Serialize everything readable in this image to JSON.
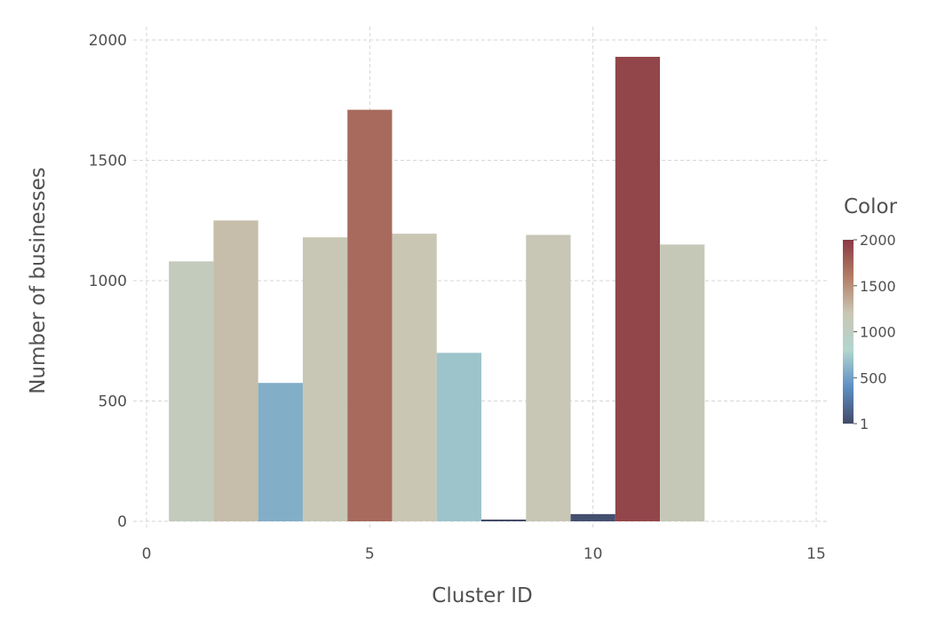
{
  "chart_data": {
    "type": "bar",
    "title": "",
    "xlabel": "Cluster ID",
    "ylabel": "Number of businesses",
    "xlim": [
      0,
      15
    ],
    "ylim": [
      0,
      2000
    ],
    "x_ticks": [
      0,
      5,
      10,
      15
    ],
    "y_ticks": [
      0,
      500,
      1000,
      1500,
      2000
    ],
    "grid": true,
    "bar_width": 1,
    "series": [
      {
        "x": [
          1,
          2,
          3,
          4,
          5,
          6,
          7,
          8,
          9,
          10,
          11,
          12
        ],
        "values": [
          1080,
          1250,
          575,
          1180,
          1710,
          1195,
          700,
          5,
          1190,
          30,
          1930,
          1150
        ]
      }
    ],
    "colorbar": {
      "title": "Color",
      "ticks": [
        1,
        500,
        1000,
        1500,
        2000
      ],
      "range": [
        1,
        2000
      ],
      "stops": [
        "#434a68",
        "#5d8fc4",
        "#b2d6ce",
        "#c9c6b4",
        "#b27c66",
        "#8b3a44"
      ]
    }
  }
}
